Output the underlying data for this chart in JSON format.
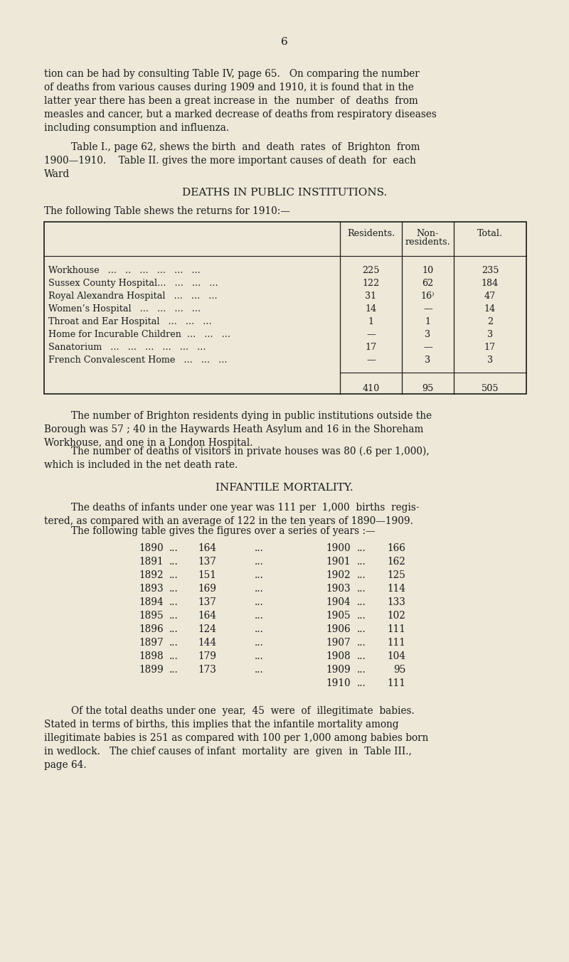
{
  "bg_color": "#ede8d8",
  "text_color": "#1a1a1a",
  "page_number": "6",
  "intro_text": [
    "tion can be had by consulting Table IV, page 65.   On comparing the number",
    "of deaths from various causes during 1909 and 1910, it is found that in the",
    "latter year there has been a great increase in  the  number  of  deaths  from",
    "measles and cancer, but a marked decrease of deaths from respiratory diseases",
    "including consumption and influenza."
  ],
  "para2_text": [
    "Table I., page 62, shews the birth  and  death  rates  of  Brighton  from",
    "1900—1910.    Table II. gives the more important causes of death  for  each",
    "Ward"
  ],
  "section_title": "DEATHS IN PUBLIC INSTITUTIONS.",
  "table_intro": "The following Table shews the returns for 1910:—",
  "table_rows": [
    [
      "Workhouse   ...   ..   ...   ...   ...   ...",
      "225",
      "10",
      "235"
    ],
    [
      "Sussex County Hospital...   ...   ...   ...",
      "122",
      "62",
      "184"
    ],
    [
      "Royal Alexandra Hospital   ...   ...   ...",
      "31",
      "16⁾",
      "47"
    ],
    [
      "Women’s Hospital   ...   ...   ...   ...",
      "14",
      "—",
      "14"
    ],
    [
      "Throat and Ear Hospital   ...   ...   ...",
      "1",
      "1",
      "2"
    ],
    [
      "Home for Incurable Children  ...   ...   ...",
      "—",
      "3",
      "3"
    ],
    [
      "Sanatorium   ...   ...   ...   ...   ...   ...",
      "17",
      "—",
      "17"
    ],
    [
      "French Convalescent Home   ...   ...   ...",
      "—",
      "3",
      "3"
    ]
  ],
  "table_totals": [
    "410",
    "95",
    "505"
  ],
  "para3_lines": [
    "The number of Brighton residents dying in public institutions outside the",
    "Borough was 57 ; 40 in the Haywards Heath Asylum and 16 in the Shoreham",
    "Workhouse, and one in a London Hospital."
  ],
  "para4_lines": [
    "The number of deaths of visitors in private houses was 80 (.6 per 1,000),",
    "which is included in the net death rate."
  ],
  "section2_title": "INFANTILE MORTALITY.",
  "para5_lines": [
    "The deaths of infants under one year was 111 per  1,000  births  regis-",
    "tered, as compared with an average of 122 in the ten years of 1890—1909."
  ],
  "table2_intro": "The following table gives the figures over a series of years :—",
  "mortality_left": [
    [
      "1890",
      "164"
    ],
    [
      "1891",
      "137"
    ],
    [
      "1892",
      "151"
    ],
    [
      "1893",
      "169"
    ],
    [
      "1894",
      "137"
    ],
    [
      "1895",
      "164"
    ],
    [
      "1896",
      "124"
    ],
    [
      "1897",
      "144"
    ],
    [
      "1898",
      "179"
    ],
    [
      "1899",
      "173"
    ]
  ],
  "mortality_right": [
    [
      "1900",
      "166"
    ],
    [
      "1901",
      "162"
    ],
    [
      "1902",
      "125"
    ],
    [
      "1903",
      "114"
    ],
    [
      "1904",
      "133"
    ],
    [
      "1905",
      "102"
    ],
    [
      "1906",
      "111"
    ],
    [
      "1907",
      "111"
    ],
    [
      "1908",
      "104"
    ],
    [
      "1909",
      "95"
    ],
    [
      "1910",
      "111"
    ]
  ],
  "para6_lines": [
    "Of the total deaths under one  year,  45  were  of  illegitimate  babies.",
    "Stated in terms of births, this implies that the infantile mortality among",
    "illegitimate babies is 251 as compared with 100 per 1,000 among babies born",
    "in wedlock.   The chief causes of infant  mortality  are  given  in  Table III.,",
    "page 64."
  ]
}
